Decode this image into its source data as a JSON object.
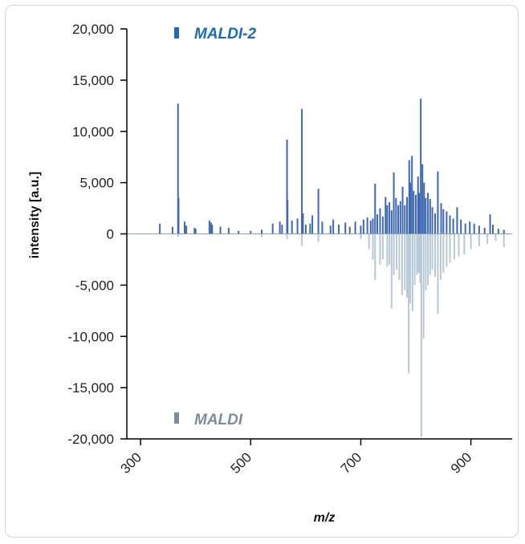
{
  "chart_data": {
    "type": "bar",
    "subtype": "mirrored mass spectrum",
    "xlabel": "m/z",
    "ylabel": "intensity [a.u.]",
    "xlim": [
      275,
      975
    ],
    "ylim": [
      -20000,
      20000
    ],
    "x_ticks": [
      300,
      500,
      700,
      900
    ],
    "x_tick_labels": [
      "300",
      "500",
      "700",
      "900"
    ],
    "y_ticks": [
      20000,
      15000,
      10000,
      5000,
      0,
      -5000,
      -10000,
      -15000,
      -20000
    ],
    "y_tick_labels": [
      "20,000",
      "15,000",
      "10,000",
      "5,000",
      "0",
      "-5,000",
      "-10,000",
      "-15,000",
      "-20,000"
    ],
    "grid": false,
    "legend": "inside, top-left (MALDI-2) and bottom-left (MALDI)",
    "colors": {
      "maldi2": "#3f68b3",
      "maldi2_legend": "#1e6ab4",
      "maldi": "#b7c9d6",
      "maldi_legend": "#7d8d9a"
    },
    "series": [
      {
        "name": "MALDI-2",
        "direction": "positive",
        "x": [
          335,
          358,
          368,
          369,
          380,
          383,
          398,
          400,
          425,
          428,
          430,
          445,
          460,
          478,
          500,
          520,
          540,
          553,
          557,
          566,
          567,
          575,
          585,
          593,
          595,
          600,
          608,
          612,
          623,
          630,
          645,
          650,
          660,
          672,
          680,
          690,
          700,
          705,
          712,
          718,
          722,
          726,
          730,
          735,
          740,
          745,
          748,
          752,
          756,
          760,
          764,
          768,
          772,
          776,
          780,
          784,
          788,
          790,
          793,
          796,
          800,
          804,
          806,
          809,
          812,
          815,
          818,
          822,
          826,
          830,
          835,
          840,
          846,
          850,
          856,
          862,
          868,
          875,
          882,
          890,
          898,
          906,
          915,
          925,
          935,
          940,
          950,
          960
        ],
        "values": [
          1000,
          700,
          12700,
          3500,
          1200,
          800,
          600,
          500,
          1300,
          1100,
          900,
          700,
          600,
          300,
          300,
          400,
          1000,
          1200,
          900,
          9200,
          3300,
          1300,
          1500,
          12200,
          2000,
          900,
          1000,
          1800,
          4400,
          1200,
          800,
          1400,
          900,
          1100,
          700,
          1200,
          800,
          1400,
          1600,
          1300,
          1500,
          4900,
          1900,
          2500,
          1700,
          3600,
          2800,
          3100,
          2300,
          6000,
          3500,
          2800,
          3200,
          4600,
          2800,
          3600,
          7200,
          5000,
          7600,
          4200,
          3800,
          5600,
          4000,
          13200,
          6800,
          5000,
          3500,
          4000,
          3400,
          2600,
          2000,
          6100,
          3000,
          2400,
          2200,
          1800,
          1500,
          2600,
          1400,
          1000,
          1200,
          1000,
          800,
          600,
          1900,
          900,
          500,
          400
        ]
      },
      {
        "name": "MALDI",
        "direction": "negative",
        "x": [
          368,
          520,
          566,
          593,
          623,
          700,
          715,
          722,
          726,
          735,
          740,
          748,
          752,
          756,
          760,
          765,
          770,
          775,
          780,
          784,
          787,
          790,
          794,
          798,
          802,
          805,
          808,
          810,
          814,
          818,
          822,
          826,
          830,
          835,
          840,
          845,
          850,
          856,
          862,
          870,
          878,
          888,
          900,
          915,
          930,
          945,
          960
        ],
        "values": [
          -300,
          -300,
          -500,
          -1200,
          -800,
          -500,
          -1500,
          -2500,
          -4500,
          -3000,
          -2500,
          -3200,
          -3000,
          -7300,
          -4000,
          -3500,
          -4500,
          -6000,
          -5500,
          -6200,
          -13600,
          -6800,
          -7500,
          -5000,
          -4000,
          -3800,
          -4800,
          -19800,
          -10200,
          -5500,
          -5000,
          -4000,
          -3500,
          -4200,
          -7800,
          -4500,
          -3800,
          -3200,
          -2800,
          -2500,
          -2200,
          -2000,
          -1500,
          -1200,
          -1000,
          -700,
          -1300
        ]
      }
    ]
  },
  "legend": {
    "maldi2_label": "MALDI-2",
    "maldi_label": "MALDI"
  },
  "axes": {
    "xlabel": "m/z",
    "ylabel": "intensity [a.u.]"
  }
}
